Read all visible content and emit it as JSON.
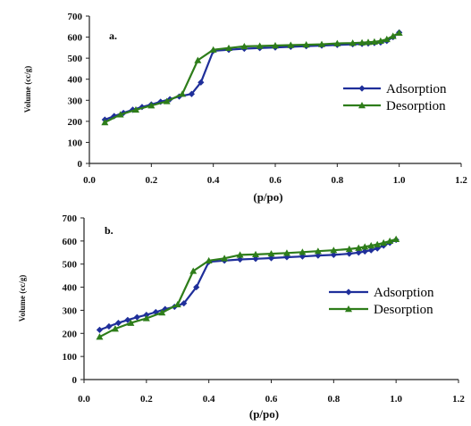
{
  "chart_data": [
    {
      "type": "line",
      "panel_label": "a.",
      "xlabel": "(p/po)",
      "ylabel": "Volume (cc/g)",
      "xlim": [
        0.0,
        1.2
      ],
      "ylim": [
        0,
        700
      ],
      "xticks": [
        "0.0",
        "0.2",
        "0.4",
        "0.6",
        "0.8",
        "1.0",
        "1.2"
      ],
      "yticks": [
        "0",
        "100",
        "200",
        "300",
        "400",
        "500",
        "600",
        "700"
      ],
      "grid": false,
      "legend_position": "right",
      "series": [
        {
          "name": "Adsorption",
          "color": "#1f2f9a",
          "marker": "diamond",
          "x": [
            0.05,
            0.08,
            0.11,
            0.14,
            0.17,
            0.2,
            0.23,
            0.26,
            0.29,
            0.33,
            0.36,
            0.4,
            0.45,
            0.5,
            0.55,
            0.6,
            0.65,
            0.7,
            0.75,
            0.8,
            0.85,
            0.88,
            0.9,
            0.92,
            0.94,
            0.96,
            0.98,
            1.0
          ],
          "y": [
            208,
            225,
            240,
            255,
            268,
            280,
            293,
            305,
            318,
            330,
            385,
            535,
            540,
            545,
            548,
            551,
            554,
            557,
            560,
            563,
            566,
            568,
            570,
            572,
            575,
            582,
            600,
            622
          ]
        },
        {
          "name": "Desorption",
          "color": "#2e7d1a",
          "marker": "triangle",
          "x": [
            0.05,
            0.1,
            0.15,
            0.2,
            0.25,
            0.3,
            0.35,
            0.4,
            0.45,
            0.5,
            0.55,
            0.6,
            0.65,
            0.7,
            0.75,
            0.8,
            0.85,
            0.88,
            0.9,
            0.92,
            0.94,
            0.96,
            0.98,
            1.0
          ],
          "y": [
            195,
            232,
            255,
            275,
            295,
            330,
            490,
            540,
            548,
            556,
            558,
            560,
            562,
            564,
            566,
            570,
            572,
            574,
            576,
            578,
            582,
            590,
            605,
            620
          ]
        }
      ]
    },
    {
      "type": "line",
      "panel_label": "b.",
      "xlabel": "(p/po)",
      "ylabel": "Volume (cc/g)",
      "xlim": [
        0.0,
        1.2
      ],
      "ylim": [
        0,
        700
      ],
      "xticks": [
        "0.0",
        "0.2",
        "0.4",
        "0.6",
        "0.8",
        "1.0",
        "1.2"
      ],
      "yticks": [
        "0",
        "100",
        "200",
        "300",
        "400",
        "500",
        "600",
        "700"
      ],
      "grid": false,
      "legend_position": "right",
      "series": [
        {
          "name": "Adsorption",
          "color": "#1f2f9a",
          "marker": "diamond",
          "x": [
            0.05,
            0.08,
            0.11,
            0.14,
            0.17,
            0.2,
            0.23,
            0.26,
            0.29,
            0.32,
            0.36,
            0.4,
            0.45,
            0.5,
            0.55,
            0.6,
            0.65,
            0.7,
            0.75,
            0.8,
            0.85,
            0.88,
            0.9,
            0.92,
            0.94,
            0.96,
            0.98,
            1.0
          ],
          "y": [
            215,
            230,
            245,
            258,
            270,
            280,
            292,
            305,
            315,
            330,
            400,
            510,
            515,
            520,
            523,
            526,
            530,
            533,
            537,
            540,
            545,
            550,
            555,
            560,
            568,
            580,
            592,
            605
          ]
        },
        {
          "name": "Desorption",
          "color": "#2e7d1a",
          "marker": "triangle",
          "x": [
            0.05,
            0.1,
            0.15,
            0.2,
            0.25,
            0.3,
            0.35,
            0.4,
            0.45,
            0.5,
            0.55,
            0.6,
            0.65,
            0.7,
            0.75,
            0.8,
            0.85,
            0.88,
            0.9,
            0.92,
            0.94,
            0.96,
            0.98,
            1.0
          ],
          "y": [
            185,
            220,
            245,
            265,
            290,
            325,
            470,
            515,
            525,
            540,
            542,
            545,
            548,
            552,
            556,
            560,
            565,
            570,
            575,
            580,
            585,
            592,
            600,
            608
          ]
        }
      ]
    }
  ]
}
